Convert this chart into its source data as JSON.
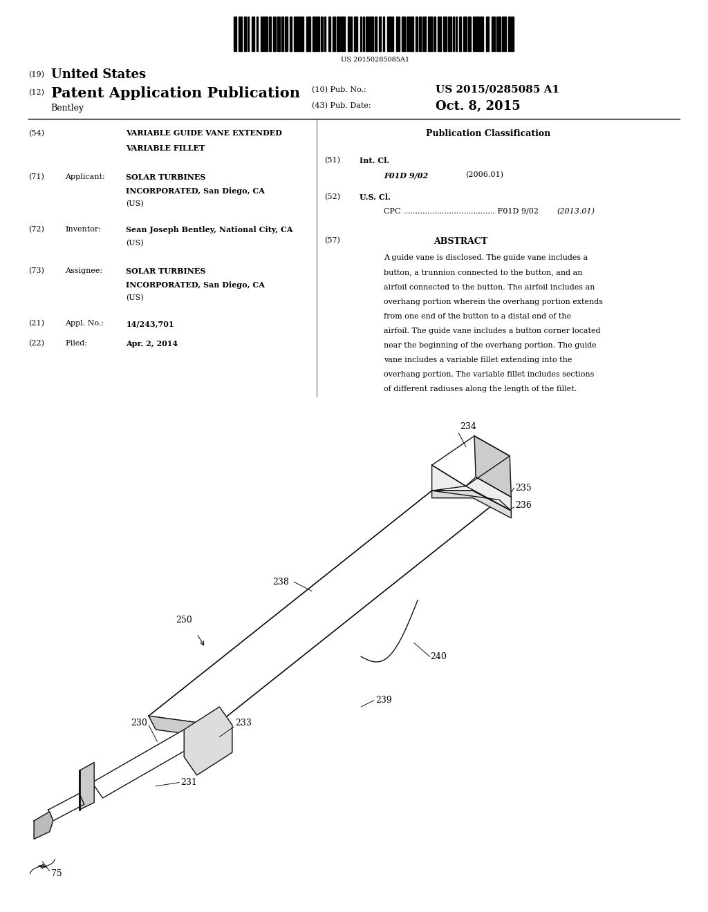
{
  "background_color": "#ffffff",
  "barcode_text": "US 20150285085A1",
  "header": {
    "country_label": "(19)",
    "country": "United States",
    "type_label": "(12)",
    "type": "Patent Application Publication",
    "pub_no_label": "(10) Pub. No.:",
    "pub_no": "US 2015/0285085 A1",
    "date_label": "(43) Pub. Date:",
    "date": "Oct. 8, 2015",
    "inventor_surname": "Bentley"
  },
  "left_column": {
    "title_label": "(54)",
    "title_line1": "VARIABLE GUIDE VANE EXTENDED",
    "title_line2": "VARIABLE FILLET",
    "applicant_label": "(71)",
    "applicant_tag": "Applicant:",
    "applicant_line1": "SOLAR TURBINES",
    "applicant_line2": "INCORPORATED, San Diego, CA",
    "applicant_line3": "(US)",
    "inventor_label": "(72)",
    "inventor_tag": "Inventor:",
    "inventor_line1": "Sean Joseph Bentley, National City, CA",
    "inventor_line2": "(US)",
    "assignee_label": "(73)",
    "assignee_tag": "Assignee:",
    "assignee_line1": "SOLAR TURBINES",
    "assignee_line2": "INCORPORATED, San Diego, CA",
    "assignee_line3": "(US)",
    "appl_label": "(21)",
    "appl_tag": "Appl. No.:",
    "appl_no": "14/243,701",
    "filed_label": "(22)",
    "filed_tag": "Filed:",
    "filed_date": "Apr. 2, 2014"
  },
  "right_column": {
    "pub_class_title": "Publication Classification",
    "int_cl_label": "(51)",
    "int_cl_tag": "Int. Cl.",
    "int_cl_class": "F01D 9/02",
    "int_cl_year": "(2006.01)",
    "us_cl_label": "(52)",
    "us_cl_tag": "U.S. Cl.",
    "cpc_tag": "CPC",
    "cpc_dots": "......................................",
    "cpc_class": "F01D 9/02",
    "cpc_year": "(2013.01)",
    "abstract_label": "(57)",
    "abstract_title": "ABSTRACT",
    "abstract_text": "A guide vane is disclosed. The guide vane includes a button, a trunnion connected to the button, and an airfoil connected to the button. The airfoil includes an overhang portion wherein the overhang portion extends from one end of the button to a distal end of the airfoil. The guide vane includes a button corner located near the beginning of the overhang portion. The guide vane includes a variable fillet extending into the overhang portion. The variable fillet includes sections of different radiuses along the length of the fillet."
  }
}
